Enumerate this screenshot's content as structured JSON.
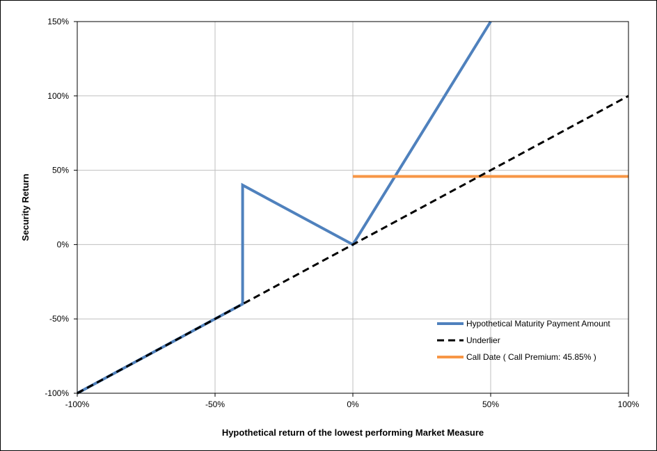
{
  "chart_data": {
    "type": "line",
    "title": "",
    "xlabel": "Hypothetical return of the lowest performing Market Measure",
    "ylabel": "Security Return",
    "xlim": [
      -100,
      100
    ],
    "ylim": [
      -100,
      150
    ],
    "x_ticks": [
      -100,
      -50,
      0,
      50,
      100
    ],
    "y_ticks": [
      -100,
      -50,
      0,
      50,
      100,
      150
    ],
    "x_tick_labels": [
      "-100%",
      "-50%",
      "0%",
      "50%",
      "100%"
    ],
    "y_tick_labels": [
      "-100%",
      "-50%",
      "0%",
      "50%",
      "100%",
      "150%"
    ],
    "grid": true,
    "legend_position": "bottom-right",
    "series": [
      {
        "name": "Hypothetical Maturity Payment Amount",
        "color": "#4F81BD",
        "style": "solid",
        "points": [
          [
            -100,
            -100
          ],
          [
            -40,
            -40
          ],
          [
            -40,
            40
          ],
          [
            0,
            0
          ],
          [
            50,
            150
          ]
        ]
      },
      {
        "name": "Underlier",
        "color": "#000000",
        "style": "dashed",
        "points": [
          [
            -100,
            -100
          ],
          [
            100,
            100
          ]
        ]
      },
      {
        "name": "Call Date ( Call Premium: 45.85% )",
        "color": "#F79646",
        "style": "solid",
        "points": [
          [
            0,
            45.85
          ],
          [
            100,
            45.85
          ]
        ]
      }
    ]
  }
}
